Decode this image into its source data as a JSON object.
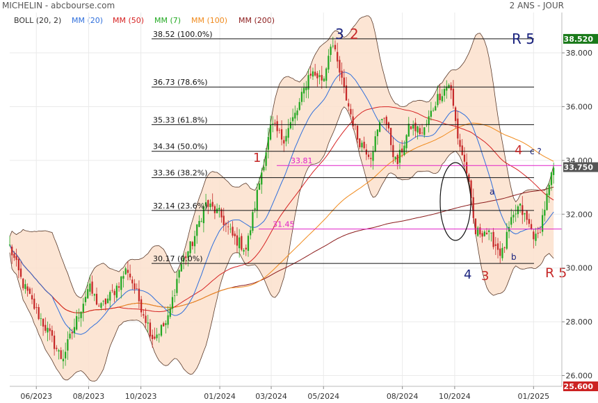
{
  "header": {
    "title": "MICHELIN - abcbourse.com",
    "period": "2 ANS - JOUR"
  },
  "legend": [
    {
      "label": "BOLL (20, 2)",
      "color": "#333333"
    },
    {
      "label": "MM (20)",
      "color": "#2f6fdc"
    },
    {
      "label": "MM (50)",
      "color": "#d62222"
    },
    {
      "label": "MM (7)",
      "color": "#22aa22"
    },
    {
      "label": "MM (100)",
      "color": "#f08a1c"
    },
    {
      "label": "MM (200)",
      "color": "#8b1a1a"
    }
  ],
  "chart_data": {
    "type": "candlestick",
    "ylim": [
      25.6,
      39.5
    ],
    "y_ticks": [
      "26.000",
      "28.000",
      "30.000",
      "32.000",
      "34.000",
      "36.000",
      "38.000"
    ],
    "x_ticks": [
      "06/2023",
      "08/2023",
      "10/2023",
      "01/2024",
      "03/2024",
      "05/2024",
      "08/2024",
      "10/2024",
      "01/2025"
    ],
    "last_price": "33.750",
    "price_tags": [
      {
        "label": "38.520",
        "value": 38.52,
        "color": "#1a7a1a"
      },
      {
        "label": "33.750",
        "value": 33.75,
        "color": "#555555"
      },
      {
        "label": "25.600",
        "value": 25.6,
        "color": "#cc2222"
      }
    ],
    "fibonacci_levels": [
      {
        "price": "38.52",
        "pct": "(100.0%)",
        "value": 38.52
      },
      {
        "price": "36.73",
        "pct": "(78.6%)",
        "value": 36.73
      },
      {
        "price": "35.33",
        "pct": "(61.8%)",
        "value": 35.33
      },
      {
        "price": "34.34",
        "pct": "(50.0%)",
        "value": 34.34
      },
      {
        "price": "33.36",
        "pct": "(38.2%)",
        "value": 33.36
      },
      {
        "price": "32.14",
        "pct": "(23.6%)",
        "value": 32.14
      },
      {
        "price": "30.17",
        "pct": "(0.0%)",
        "value": 30.17
      }
    ],
    "horizontal_lines": [
      {
        "label": "33.81",
        "value": 33.81,
        "color": "#e020c8"
      },
      {
        "label": "31.45",
        "value": 31.45,
        "color": "#e020c8"
      }
    ],
    "price_path": [
      [
        "2023-05-01",
        30.8
      ],
      [
        "2023-05-15",
        29.5
      ],
      [
        "2023-06-01",
        28.4
      ],
      [
        "2023-06-15",
        27.6
      ],
      [
        "2023-07-01",
        26.6
      ],
      [
        "2023-07-15",
        27.8
      ],
      [
        "2023-08-01",
        29.3
      ],
      [
        "2023-08-15",
        28.5
      ],
      [
        "2023-09-01",
        29.2
      ],
      [
        "2023-09-15",
        30.0
      ],
      [
        "2023-10-01",
        28.6
      ],
      [
        "2023-10-15",
        27.4
      ],
      [
        "2023-11-01",
        28.0
      ],
      [
        "2023-11-15",
        30.0
      ],
      [
        "2023-12-01",
        31.0
      ],
      [
        "2023-12-15",
        32.4
      ],
      [
        "2024-01-01",
        32.0
      ],
      [
        "2024-01-15",
        31.2
      ],
      [
        "2024-02-01",
        30.7
      ],
      [
        "2024-02-15",
        33.0
      ],
      [
        "2024-03-01",
        35.3
      ],
      [
        "2024-03-15",
        34.8
      ],
      [
        "2024-04-01",
        35.9
      ],
      [
        "2024-04-15",
        37.3
      ],
      [
        "2024-05-01",
        37.0
      ],
      [
        "2024-05-10",
        38.5
      ],
      [
        "2024-05-25",
        36.6
      ],
      [
        "2024-06-10",
        34.8
      ],
      [
        "2024-06-25",
        34.2
      ],
      [
        "2024-07-10",
        35.8
      ],
      [
        "2024-07-25",
        33.8
      ],
      [
        "2024-08-10",
        35.3
      ],
      [
        "2024-08-25",
        35.0
      ],
      [
        "2024-09-10",
        36.3
      ],
      [
        "2024-09-25",
        36.9
      ],
      [
        "2024-10-05",
        34.8
      ],
      [
        "2024-10-15",
        33.6
      ],
      [
        "2024-10-25",
        31.3
      ],
      [
        "2024-11-05",
        31.4
      ],
      [
        "2024-11-15",
        31.0
      ],
      [
        "2024-11-25",
        30.5
      ],
      [
        "2024-12-05",
        31.6
      ],
      [
        "2024-12-15",
        32.3
      ],
      [
        "2024-12-25",
        31.7
      ],
      [
        "2025-01-05",
        31.0
      ],
      [
        "2025-01-15",
        32.4
      ],
      [
        "2025-01-25",
        33.8
      ]
    ],
    "wave_labels": [
      {
        "text": "3",
        "color": "#1a237e"
      },
      {
        "text": "2",
        "color": "#c62828"
      },
      {
        "text": "R 5",
        "color": "#1a237e"
      },
      {
        "text": "1",
        "color": "#c62828"
      },
      {
        "text": "4",
        "color": "#c62828"
      },
      {
        "text": "c ?",
        "color": "#1a237e"
      },
      {
        "text": "a",
        "color": "#1a237e"
      },
      {
        "text": "b",
        "color": "#1a237e"
      },
      {
        "text": "4",
        "color": "#1a237e"
      },
      {
        "text": "3",
        "color": "#c62828"
      },
      {
        "text": "R 5",
        "color": "#c62828"
      }
    ]
  }
}
